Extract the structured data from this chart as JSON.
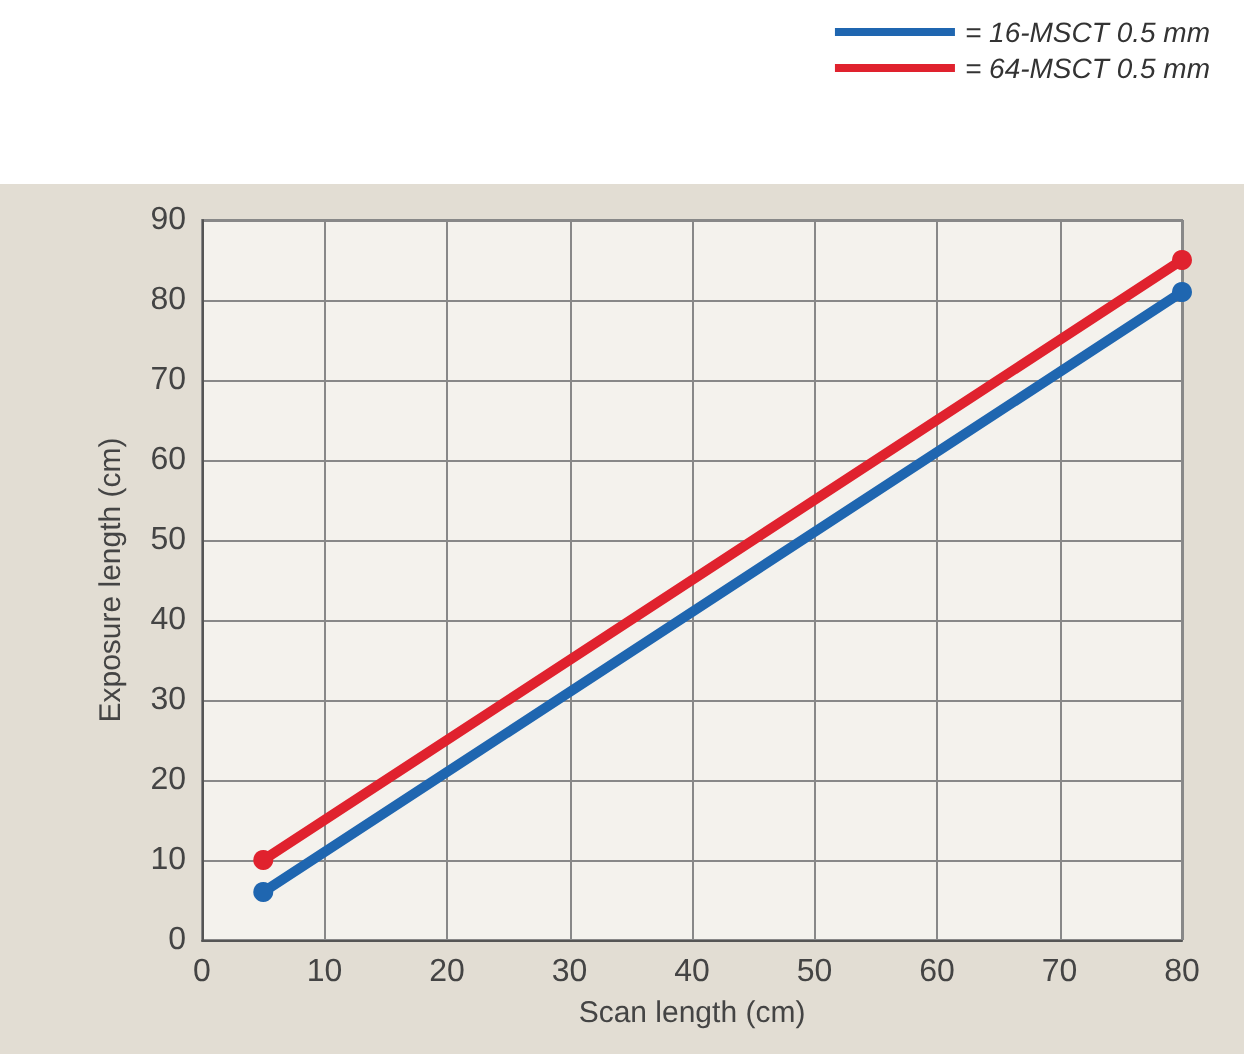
{
  "chart_data": {
    "type": "line",
    "xlabel": "Scan length (cm)",
    "ylabel": "Exposure length (cm)",
    "x": [
      5,
      80
    ],
    "series": [
      {
        "name": "= 16-MSCT 0.5 mm",
        "color": "#1f66b0",
        "values": [
          6,
          81
        ]
      },
      {
        "name": "= 64-MSCT 0.5 mm",
        "color": "#e0222e",
        "values": [
          10,
          85
        ]
      }
    ],
    "xlim": [
      0,
      80
    ],
    "xticks": [
      0,
      10,
      20,
      30,
      40,
      50,
      60,
      70,
      80
    ],
    "ylim": [
      0,
      90
    ],
    "yticks": [
      0,
      10,
      20,
      30,
      40,
      50,
      60,
      70,
      80,
      90
    ],
    "grid": true,
    "legend": "top right",
    "marker": "circle",
    "line_style": "solid"
  }
}
